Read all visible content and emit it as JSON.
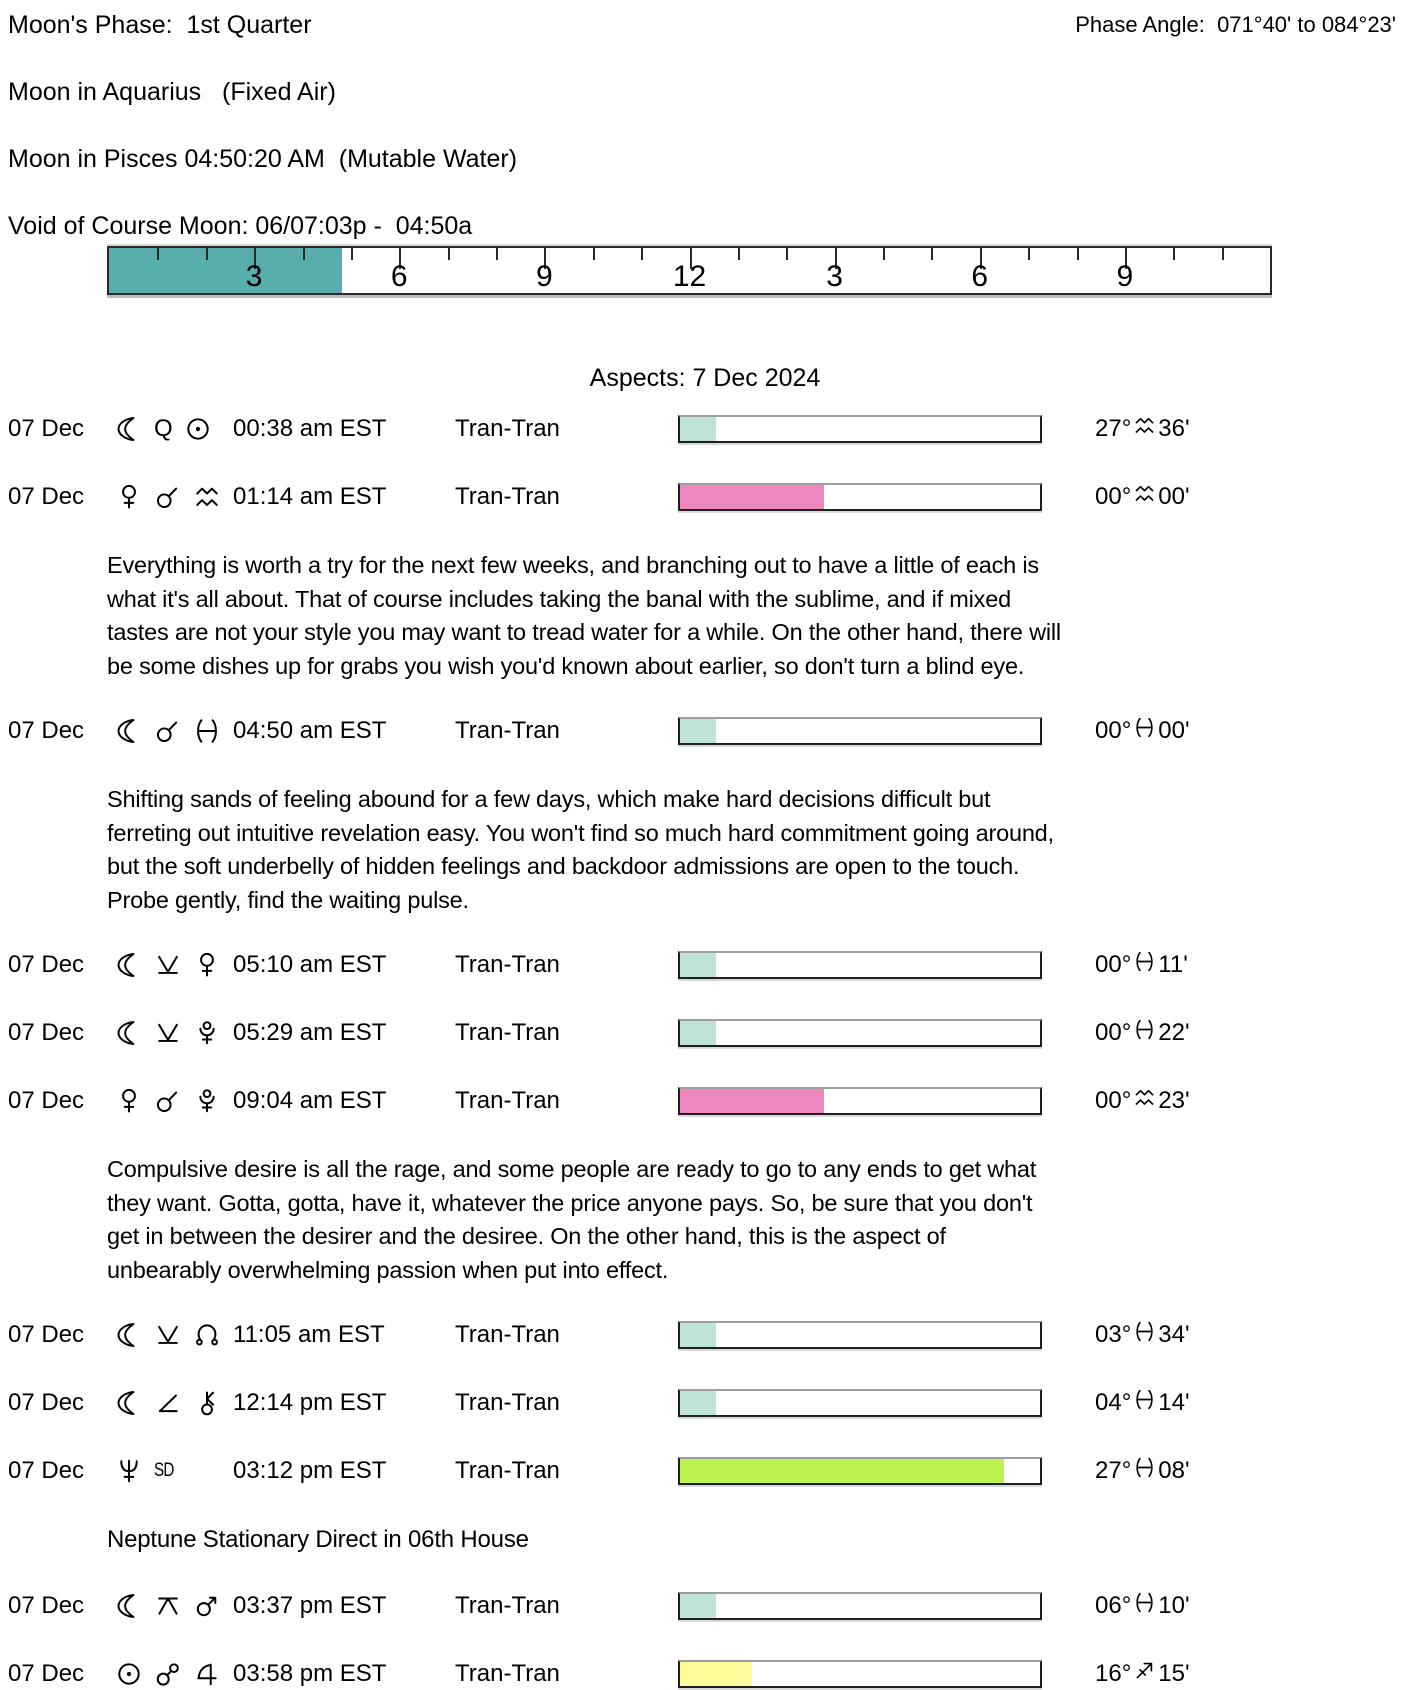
{
  "header": {
    "moon_phase": "Moon's Phase:  1st Quarter",
    "phase_angle": "Phase Angle:  071°40' to 084°23'",
    "moon_sign": "Moon in Aquarius   (Fixed Air)",
    "moon_ingress": "Moon in Pisces 04:50:20 AM  (Mutable Water)",
    "void_of_course": "Void of Course Moon: 06/07:03p -  04:50a"
  },
  "ruler": {
    "hours": 24,
    "labels": [
      "3",
      "6",
      "9",
      "12",
      "3",
      "6",
      "9"
    ],
    "label_hours": [
      3,
      6,
      9,
      12,
      15,
      18,
      21
    ],
    "fill_percent": 20.1,
    "fill_color": "teal"
  },
  "title": "Aspects: 7 Dec 2024",
  "colors": {
    "teal": "#58aeac",
    "mint": "#bfe4d6",
    "pink": "#ee87bd",
    "green": "#bdf34e",
    "yellow": "#fdfa9a"
  },
  "icons": {
    "moon": "☾",
    "sun": "☉",
    "venus": "♀",
    "mars": "♂",
    "jupiter": "♃",
    "neptune": "♆",
    "pluto": "♇",
    "conjunction": "☌",
    "opposition": "☍",
    "quintile": "Q",
    "semi-sextile": "⚺",
    "semi-square": "∠",
    "quincunx": "⚻",
    "north-node": "☊",
    "chiron": "⚷",
    "aquarius": "♒",
    "pisces": "♓",
    "sagittarius": "♐",
    "sd": "SD"
  },
  "aspects": {
    "rows": [
      {
        "date": "07 Dec",
        "symbols": [
          "moon",
          "quintile",
          "sun"
        ],
        "time": "00:38 am EST",
        "type": "Tran-Tran",
        "bar": {
          "percent": 10,
          "color": "mint"
        },
        "value": {
          "deg": "27°",
          "sign": "aquarius",
          "min": "36'"
        }
      },
      {
        "date": "07 Dec",
        "symbols": [
          "venus",
          "conjunction",
          "aquarius"
        ],
        "time": "01:14 am EST",
        "type": "Tran-Tran",
        "bar": {
          "percent": 40,
          "color": "pink"
        },
        "value": {
          "deg": "00°",
          "sign": "aquarius",
          "min": "00'"
        },
        "description": [
          "Everything is worth a try for the next few weeks, and branching out to have a little of each is",
          "what it's all about. That of course includes taking the banal with the sublime, and if mixed",
          "tastes are not your style you may want to tread water for a while. On the other hand, there will",
          "be some dishes up for grabs you wish you'd known about earlier, so don't turn a blind eye."
        ]
      },
      {
        "date": "07 Dec",
        "symbols": [
          "moon",
          "conjunction",
          "pisces"
        ],
        "time": "04:50 am EST",
        "type": "Tran-Tran",
        "bar": {
          "percent": 10,
          "color": "mint"
        },
        "value": {
          "deg": "00°",
          "sign": "pisces",
          "min": "00'"
        },
        "description": [
          "Shifting sands of feeling abound for a few days, which make hard decisions difficult but",
          "ferreting out intuitive revelation easy. You won't find so much hard commitment going around,",
          "but the soft underbelly of hidden feelings and backdoor admissions are open to the touch.",
          "Probe gently, find the waiting pulse."
        ]
      },
      {
        "date": "07 Dec",
        "symbols": [
          "moon",
          "semi-sextile",
          "venus"
        ],
        "time": "05:10 am EST",
        "type": "Tran-Tran",
        "bar": {
          "percent": 10,
          "color": "mint"
        },
        "value": {
          "deg": "00°",
          "sign": "pisces",
          "min": "11'"
        }
      },
      {
        "date": "07 Dec",
        "symbols": [
          "moon",
          "semi-sextile",
          "pluto"
        ],
        "time": "05:29 am EST",
        "type": "Tran-Tran",
        "bar": {
          "percent": 10,
          "color": "mint"
        },
        "value": {
          "deg": "00°",
          "sign": "pisces",
          "min": "22'"
        }
      },
      {
        "date": "07 Dec",
        "symbols": [
          "venus",
          "conjunction",
          "pluto"
        ],
        "time": "09:04 am EST",
        "type": "Tran-Tran",
        "bar": {
          "percent": 40,
          "color": "pink"
        },
        "value": {
          "deg": "00°",
          "sign": "aquarius",
          "min": "23'"
        },
        "description": [
          "Compulsive desire is all the rage, and some people are ready to go to any ends to get what",
          "they want. Gotta, gotta, have it, whatever the price anyone pays. So, be sure that you don't",
          "get in between the desirer and the desiree. On the other hand, this is the aspect of",
          "unbearably overwhelming passion when put into effect."
        ]
      },
      {
        "date": "07 Dec",
        "symbols": [
          "moon",
          "semi-sextile",
          "north-node"
        ],
        "time": "11:05 am EST",
        "type": "Tran-Tran",
        "bar": {
          "percent": 10,
          "color": "mint"
        },
        "value": {
          "deg": "03°",
          "sign": "pisces",
          "min": "34'"
        }
      },
      {
        "date": "07 Dec",
        "symbols": [
          "moon",
          "semi-square",
          "chiron"
        ],
        "time": "12:14 pm EST",
        "type": "Tran-Tran",
        "bar": {
          "percent": 10,
          "color": "mint"
        },
        "value": {
          "deg": "04°",
          "sign": "pisces",
          "min": "14'"
        }
      },
      {
        "date": "07 Dec",
        "symbols": [
          "neptune",
          "sd"
        ],
        "time": "03:12 pm EST",
        "type": "Tran-Tran",
        "bar": {
          "percent": 90,
          "color": "green"
        },
        "value": {
          "deg": "27°",
          "sign": "pisces",
          "min": "08'"
        },
        "note": "Neptune Stationary Direct in 06th House"
      },
      {
        "date": "07 Dec",
        "symbols": [
          "moon",
          "quincunx",
          "mars"
        ],
        "time": "03:37 pm EST",
        "type": "Tran-Tran",
        "bar": {
          "percent": 10,
          "color": "mint"
        },
        "value": {
          "deg": "06°",
          "sign": "pisces",
          "min": "10'"
        }
      },
      {
        "date": "07 Dec",
        "symbols": [
          "sun",
          "opposition",
          "jupiter"
        ],
        "time": "03:58 pm EST",
        "type": "Tran-Tran",
        "bar": {
          "percent": 20,
          "color": "yellow"
        },
        "value": {
          "deg": "16°",
          "sign": "sagittarius",
          "min": "15'"
        }
      }
    ]
  }
}
